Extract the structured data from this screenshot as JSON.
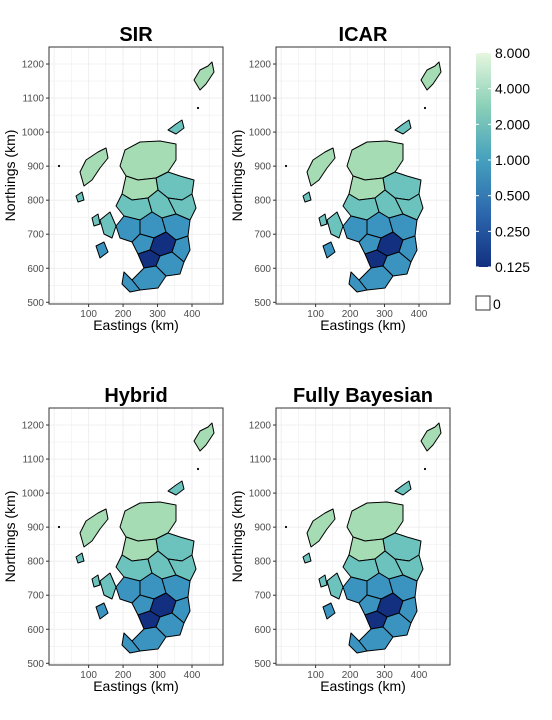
{
  "panels": [
    {
      "title": "SIR",
      "xlabel": "Eastings (km)",
      "ylabel": "Northings (km)"
    },
    {
      "title": "ICAR",
      "xlabel": "Eastings (km)",
      "ylabel": "Northings (km)"
    },
    {
      "title": "Hybrid",
      "xlabel": "Eastings (km)",
      "ylabel": "Northings (km)"
    },
    {
      "title": "Fully Bayesian",
      "xlabel": "Eastings (km)",
      "ylabel": "Northings (km)"
    }
  ],
  "axes": {
    "x_ticks": [
      "100",
      "200",
      "300",
      "400"
    ],
    "y_ticks": [
      "500",
      "600",
      "700",
      "800",
      "900",
      "1000",
      "1100",
      "1200"
    ],
    "x_range": [
      -15,
      490
    ],
    "y_range": [
      495,
      1250
    ]
  },
  "legend": {
    "labels": [
      "8.000",
      "4.000",
      "2.000",
      "1.000",
      "0.500",
      "0.250",
      "0.125"
    ],
    "zero_label": "0",
    "scale": "log2",
    "colors": {
      "high": "#e6f6de",
      "upper": "#a6dcb3",
      "mid": "#6cc3bd",
      "lower": "#3b94c0",
      "low": "#12307f"
    },
    "zero_fill": "#ffffff"
  },
  "map": {
    "outline_color": "#000000",
    "grid_color": "#ebebeb",
    "panel_border": "#333333"
  }
}
